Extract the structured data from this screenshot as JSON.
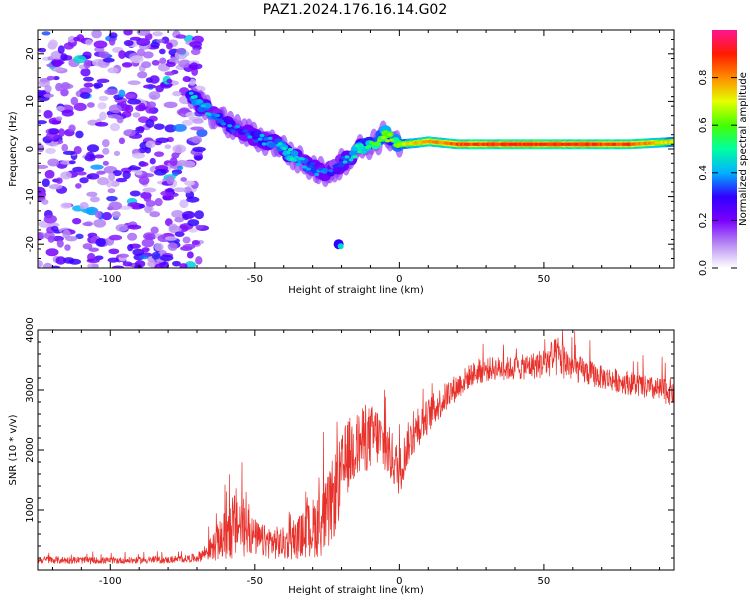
{
  "title": "PAZ1.2024.176.16.14.G02",
  "chart_data": [
    {
      "type": "heatmap",
      "xlabel": "Height of straight line (km)",
      "ylabel": "Frequency (Hz)",
      "xlim": [
        -125,
        95
      ],
      "ylim": [
        -25,
        25
      ],
      "xticks": [
        -100,
        -50,
        0,
        50
      ],
      "yticks": [
        -20,
        -10,
        0,
        10,
        20
      ],
      "xtick_labels": [
        "-100",
        "-50",
        "0",
        "50"
      ],
      "ytick_labels": [
        "-20",
        "-10",
        "0",
        "10",
        "20"
      ],
      "colorbar": {
        "label": "Normalized spectral amplitude",
        "ticks": [
          0.0,
          0.2,
          0.4,
          0.6,
          0.8
        ],
        "tick_labels": [
          "0.0",
          "0.2",
          "0.4",
          "0.6",
          "0.8"
        ],
        "range": [
          0,
          1
        ],
        "colormap": [
          "#ffffff",
          "#b78cf2",
          "#7a00ff",
          "#3000ff",
          "#00b2ff",
          "#00ffa0",
          "#46ff00",
          "#e6ff00",
          "#ff8c00",
          "#ff1a00",
          "#ff1493"
        ]
      },
      "ridge": {
        "x": [
          -72,
          -68,
          -62,
          -55,
          -48,
          -42,
          -38,
          -33,
          -30,
          -26,
          -22,
          -18,
          -14,
          -10,
          -7,
          -5,
          -2,
          0,
          5,
          10,
          20,
          40,
          60,
          80,
          95
        ],
        "y": [
          11,
          9,
          6,
          4,
          2,
          1,
          -1,
          -3,
          -4,
          -5,
          -4,
          -2,
          0,
          1,
          2,
          3,
          2,
          1,
          1.2,
          1.6,
          1,
          1,
          1,
          1,
          1.5
        ],
        "amp": [
          0.45,
          0.42,
          0.38,
          0.35,
          0.38,
          0.42,
          0.48,
          0.4,
          0.36,
          0.4,
          0.32,
          0.42,
          0.5,
          0.55,
          0.62,
          0.7,
          0.6,
          0.65,
          0.75,
          0.78,
          0.85,
          0.9,
          0.88,
          0.86,
          0.7
        ]
      },
      "noise_region": {
        "x": [
          -125,
          -68
        ],
        "amp_range": [
          0.05,
          0.3
        ]
      },
      "features": [
        {
          "x": -21,
          "y": -20,
          "amp": 0.3
        }
      ]
    },
    {
      "type": "line",
      "xlabel": "Height of straight line (km)",
      "ylabel": "SNR (10 * v/v)",
      "xlim": [
        -125,
        95
      ],
      "ylim": [
        0,
        4000
      ],
      "xticks": [
        -100,
        -50,
        0,
        50
      ],
      "yticks": [
        1000,
        2000,
        3000,
        4000
      ],
      "xtick_labels": [
        "-100",
        "-50",
        "0",
        "50"
      ],
      "ytick_labels": [
        "1000",
        "2000",
        "3000",
        "4000"
      ],
      "color": "#e8302a",
      "envelope": {
        "x": [
          -125,
          -100,
          -80,
          -70,
          -65,
          -60,
          -56,
          -52,
          -48,
          -44,
          -40,
          -36,
          -32,
          -28,
          -25,
          -22,
          -20,
          -18,
          -15,
          -12,
          -8,
          -5,
          -2,
          0,
          3,
          7,
          12,
          18,
          25,
          32,
          40,
          48,
          52,
          55,
          60,
          70,
          80,
          88,
          95
        ],
        "base": [
          150,
          140,
          150,
          180,
          300,
          450,
          600,
          500,
          400,
          380,
          350,
          400,
          500,
          600,
          700,
          1100,
          1400,
          1700,
          1900,
          2000,
          2100,
          1900,
          1700,
          1500,
          2000,
          2300,
          2600,
          2900,
          3200,
          3300,
          3300,
          3350,
          3400,
          3450,
          3300,
          3150,
          3050,
          2950,
          2900
        ],
        "amplitude": [
          80,
          70,
          70,
          90,
          250,
          550,
          800,
          450,
          350,
          350,
          350,
          400,
          550,
          700,
          800,
          900,
          800,
          800,
          700,
          700,
          650,
          600,
          550,
          500,
          450,
          400,
          350,
          300,
          250,
          250,
          250,
          300,
          350,
          450,
          300,
          250,
          250,
          250,
          300
        ]
      }
    }
  ]
}
